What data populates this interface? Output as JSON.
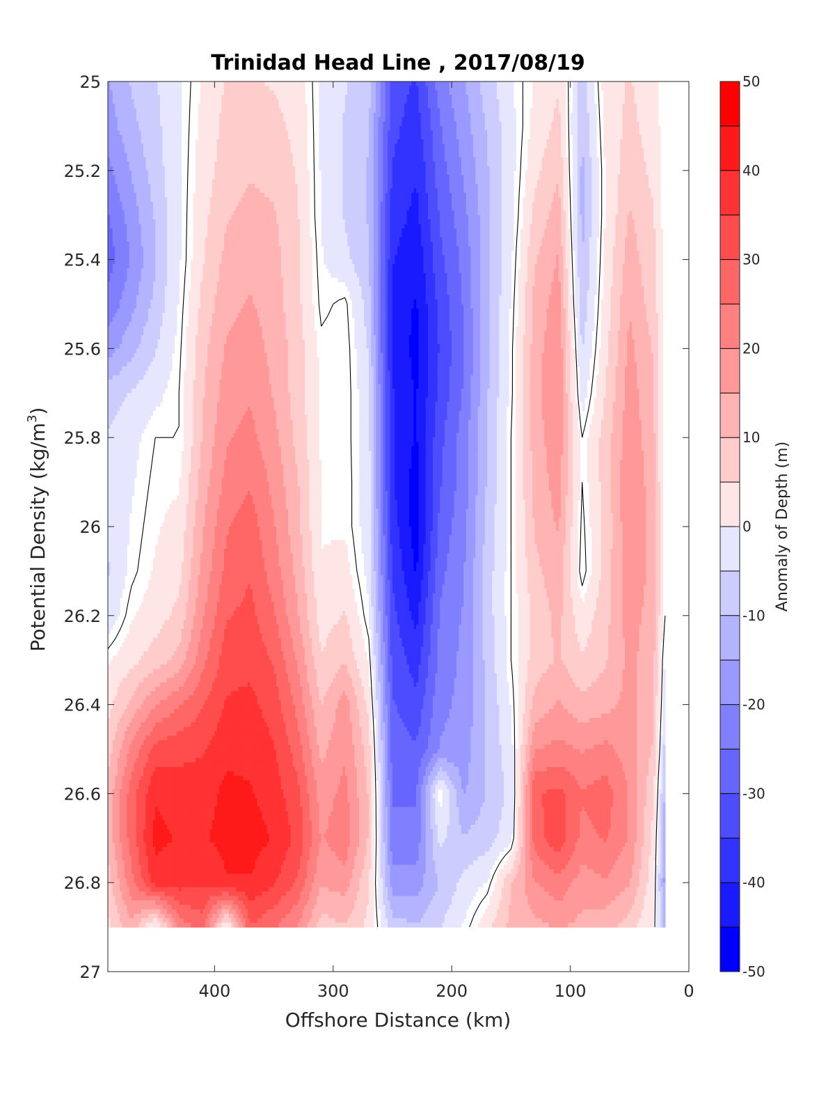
{
  "chart_data": {
    "type": "heatmap",
    "subtype": "filled-contour",
    "title": "Trinidad Head Line , 2017/08/19",
    "xlabel": "Offshore Distance (km)",
    "ylabel_main": "Potential Density (kg/m",
    "ylabel_sup": "3",
    "ylabel_close": ")",
    "xlim": [
      490,
      0
    ],
    "ylim": [
      25,
      27
    ],
    "x_reversed": true,
    "y_reversed": true,
    "x_ticks": [
      400,
      300,
      200,
      100,
      0
    ],
    "x_tick_labels": [
      "400",
      "300",
      "200",
      "100",
      "0"
    ],
    "y_ticks": [
      25,
      25.2,
      25.4,
      25.6,
      25.8,
      26,
      26.2,
      26.4,
      26.6,
      26.8,
      27
    ],
    "y_tick_labels": [
      "25",
      "25.2",
      "25.4",
      "25.6",
      "25.8",
      "26",
      "26.2",
      "26.4",
      "26.6",
      "26.8",
      "27"
    ],
    "grid": false,
    "contour_line_level": 0,
    "colorbar": {
      "label": "Anomaly of Depth (m)",
      "range": [
        -50,
        50
      ],
      "step": 5,
      "tick_values": [
        50,
        40,
        30,
        20,
        10,
        0,
        -10,
        -20,
        -30,
        -40,
        -50
      ],
      "tick_labels": [
        "50",
        "40",
        "30",
        "20",
        "10",
        "0",
        "-10",
        "-20",
        "-30",
        "-40",
        "-50"
      ],
      "colors": {
        "-50": "#0000ff",
        "-45": "#1a1aff",
        "-40": "#3333ff",
        "-35": "#4d4dff",
        "-30": "#6666ff",
        "-25": "#8080ff",
        "-20": "#9999ff",
        "-15": "#b3b3ff",
        "-10": "#ccccff",
        "-5": "#e6e6ff",
        "0": "#ffffff",
        "5": "#ffe6e6",
        "10": "#ffcccc",
        "15": "#ffb3b3",
        "20": "#ff9999",
        "25": "#ff8080",
        "30": "#ff6666",
        "35": "#ff4d4d",
        "40": "#ff3333",
        "45": "#ff1a1a",
        "50": "#ff0000"
      }
    },
    "data_extent": {
      "x_range": [
        490,
        20
      ],
      "y_range": [
        25,
        26.9
      ]
    },
    "anomaly_grid": {
      "x": [
        490,
        470,
        450,
        430,
        410,
        390,
        370,
        350,
        330,
        310,
        290,
        270,
        250,
        230,
        210,
        190,
        170,
        150,
        130,
        110,
        90,
        70,
        50,
        30,
        20
      ],
      "y": [
        25.0,
        25.1,
        25.2,
        25.3,
        25.4,
        25.5,
        25.6,
        25.7,
        25.8,
        25.9,
        26.0,
        26.1,
        26.2,
        26.3,
        26.4,
        26.5,
        26.6,
        26.7,
        26.8,
        26.9
      ],
      "z": [
        [
          -18,
          -12,
          -8,
          -3,
          3,
          8,
          8,
          7,
          5,
          -3,
          -7,
          -10,
          -35,
          -38,
          -25,
          -18,
          -10,
          -3,
          3,
          7,
          -10,
          5,
          8,
          4,
          0
        ],
        [
          -20,
          -14,
          -9,
          -3,
          4,
          9,
          10,
          9,
          6,
          -3,
          -8,
          -12,
          -36,
          -40,
          -28,
          -20,
          -12,
          -4,
          4,
          9,
          -12,
          4,
          9,
          5,
          0
        ],
        [
          -24,
          -17,
          -10,
          -3,
          5,
          10,
          12,
          11,
          7,
          -3,
          -8,
          -13,
          -38,
          -42,
          -30,
          -22,
          -13,
          -4,
          6,
          12,
          -14,
          3,
          11,
          6,
          0
        ],
        [
          -28,
          -20,
          -12,
          -3,
          6,
          12,
          14,
          13,
          8,
          -3,
          -8,
          -13,
          -40,
          -44,
          -32,
          -24,
          -14,
          -4,
          9,
          15,
          -14,
          3,
          13,
          8,
          0
        ],
        [
          -30,
          -22,
          -13,
          -3,
          7,
          14,
          16,
          14,
          9,
          -2,
          -6,
          -12,
          -42,
          -46,
          -34,
          -26,
          -14,
          -3,
          12,
          18,
          -13,
          4,
          15,
          9,
          0
        ],
        [
          -26,
          -19,
          -11,
          -2,
          9,
          16,
          18,
          15,
          9,
          -1,
          1,
          -10,
          -44,
          -48,
          -36,
          -27,
          -14,
          -2,
          14,
          20,
          -11,
          5,
          17,
          10,
          1
        ],
        [
          -20,
          -14,
          -8,
          -1,
          11,
          18,
          20,
          16,
          10,
          1,
          2,
          -8,
          -44,
          -49,
          -37,
          -28,
          -14,
          -1,
          15,
          22,
          -8,
          6,
          19,
          12,
          0
        ],
        [
          -10,
          -7,
          -4,
          0,
          12,
          20,
          22,
          17,
          10,
          2,
          2,
          -6,
          -42,
          -48,
          -36,
          -27,
          -13,
          -1,
          16,
          22,
          -5,
          8,
          20,
          13,
          0
        ],
        [
          -7,
          -4,
          0,
          0,
          13,
          22,
          24,
          19,
          11,
          2,
          2,
          -6,
          -42,
          -48,
          -34,
          -25,
          -12,
          0,
          15,
          21,
          0,
          10,
          21,
          14,
          0
        ],
        [
          -6,
          -3,
          1,
          2,
          15,
          24,
          27,
          21,
          13,
          2,
          2,
          -5,
          -42,
          -50,
          -33,
          -25,
          -12,
          0,
          14,
          20,
          0,
          10,
          22,
          15,
          0
        ],
        [
          -7,
          -2,
          2,
          4,
          17,
          27,
          30,
          23,
          14,
          2,
          2,
          -5,
          -40,
          -50,
          -31,
          -24,
          -11,
          0,
          13,
          18,
          -1,
          9,
          22,
          16,
          0
        ],
        [
          -8,
          -1,
          3,
          6,
          19,
          29,
          32,
          25,
          16,
          3,
          4,
          -4,
          -38,
          -48,
          -29,
          -23,
          -10,
          0,
          11,
          16,
          -2,
          10,
          21,
          16,
          0
        ],
        [
          -6,
          2,
          5,
          9,
          22,
          32,
          34,
          28,
          18,
          5,
          8,
          -2,
          -36,
          -44,
          -27,
          -22,
          -10,
          0,
          9,
          14,
          4,
          11,
          20,
          15,
          0
        ],
        [
          2,
          6,
          10,
          14,
          26,
          35,
          36,
          32,
          22,
          8,
          12,
          2,
          -34,
          -40,
          -26,
          -21,
          -11,
          0,
          10,
          13,
          8,
          12,
          19,
          14,
          -4
        ],
        [
          6,
          14,
          22,
          27,
          32,
          38,
          39,
          35,
          26,
          12,
          20,
          6,
          -32,
          -36,
          -24,
          -21,
          -12,
          -2,
          14,
          18,
          14,
          16,
          19,
          13,
          -6
        ],
        [
          10,
          24,
          34,
          36,
          37,
          41,
          41,
          38,
          30,
          16,
          22,
          10,
          -30,
          -32,
          -22,
          -20,
          -12,
          -4,
          22,
          24,
          22,
          24,
          20,
          12,
          -10
        ],
        [
          14,
          30,
          42,
          40,
          40,
          44,
          43,
          40,
          34,
          20,
          24,
          12,
          -28,
          -28,
          0,
          -18,
          -12,
          -6,
          32,
          34,
          28,
          30,
          22,
          8,
          -14
        ],
        [
          14,
          30,
          44,
          42,
          42,
          44,
          45,
          42,
          36,
          22,
          26,
          12,
          -26,
          -26,
          -6,
          -12,
          -10,
          -4,
          30,
          36,
          26,
          28,
          22,
          6,
          -18
        ],
        [
          10,
          26,
          40,
          40,
          38,
          42,
          42,
          38,
          32,
          18,
          20,
          8,
          -20,
          -20,
          -12,
          -6,
          -2,
          12,
          22,
          26,
          20,
          22,
          18,
          4,
          -20
        ],
        [
          6,
          16,
          0,
          24,
          30,
          0,
          32,
          28,
          22,
          10,
          12,
          6,
          -10,
          -12,
          -8,
          -2,
          6,
          14,
          16,
          18,
          16,
          14,
          10,
          2,
          -14
        ]
      ]
    }
  }
}
